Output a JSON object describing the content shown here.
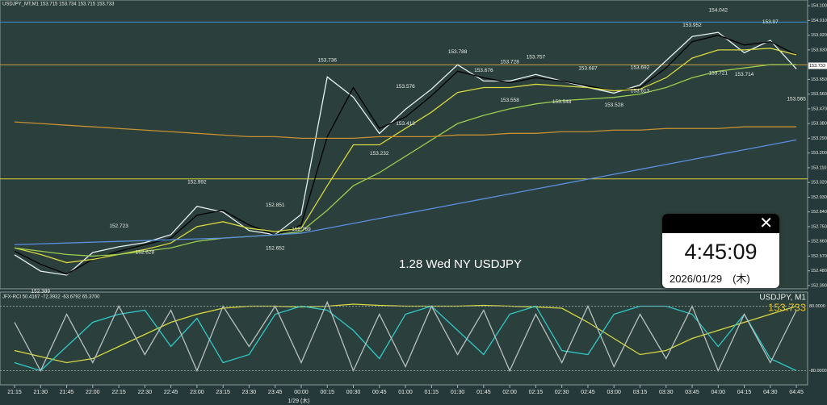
{
  "chart_data": [
    {
      "type": "line",
      "title": "USDJPY_MT,M1  153.715 153.734 153.715 153.733",
      "annotation_text": "1.28 Wed NY USDJPY",
      "x_label": "1/29 (木)",
      "categories": [
        "21:15",
        "21:30",
        "21:45",
        "22:00",
        "22:15",
        "22:30",
        "22:45",
        "23:00",
        "23:15",
        "23:30",
        "23:45",
        "00:00",
        "00:15",
        "00:30",
        "00:45",
        "01:00",
        "01:15",
        "01:30",
        "01:45",
        "02:00",
        "02:15",
        "02:30",
        "02:45",
        "03:00",
        "03:15",
        "03:30",
        "03:45",
        "04:00",
        "04:15",
        "04:30",
        "04:45"
      ],
      "series": [
        {
          "color": "#e6f0f0",
          "values": [
            152.578,
            152.478,
            152.454,
            152.592,
            152.627,
            152.652,
            152.701,
            152.874,
            152.839,
            152.726,
            152.701,
            152.825,
            153.665,
            153.541,
            153.319,
            153.467,
            153.591,
            153.739,
            153.64,
            153.64,
            153.68,
            153.64,
            153.601,
            153.566,
            153.616,
            153.764,
            153.912,
            153.937,
            153.813,
            153.888,
            153.714
          ]
        },
        {
          "color": "#000000",
          "values": [
            152.6,
            152.52,
            152.46,
            152.55,
            152.6,
            152.64,
            152.68,
            152.82,
            152.85,
            152.76,
            152.7,
            152.76,
            153.3,
            153.6,
            153.35,
            153.42,
            153.55,
            153.7,
            153.66,
            153.63,
            153.66,
            153.64,
            153.61,
            153.58,
            153.6,
            153.72,
            153.88,
            153.92,
            153.86,
            153.88,
            153.8
          ]
        },
        {
          "color": "#d8d840",
          "values": [
            152.62,
            152.58,
            152.53,
            152.55,
            152.58,
            152.61,
            152.65,
            152.75,
            152.78,
            152.74,
            152.72,
            152.74,
            153.0,
            153.25,
            153.25,
            153.35,
            153.45,
            153.57,
            153.6,
            153.6,
            153.62,
            153.61,
            153.6,
            153.58,
            153.59,
            153.66,
            153.78,
            153.83,
            153.83,
            153.84,
            153.8
          ]
        },
        {
          "color": "#9ccc50",
          "values": [
            152.62,
            152.6,
            152.58,
            152.57,
            152.58,
            152.6,
            152.62,
            152.66,
            152.68,
            152.69,
            152.7,
            152.72,
            152.85,
            153.0,
            153.08,
            153.18,
            153.28,
            153.38,
            153.43,
            153.47,
            153.5,
            153.52,
            153.53,
            153.54,
            153.56,
            153.6,
            153.66,
            153.7,
            153.72,
            153.74,
            153.74
          ]
        },
        {
          "color": "#c89030",
          "values": [
            153.39,
            153.38,
            153.37,
            153.36,
            153.35,
            153.34,
            153.33,
            153.32,
            153.31,
            153.3,
            153.3,
            153.29,
            153.29,
            153.29,
            153.3,
            153.3,
            153.3,
            153.31,
            153.31,
            153.32,
            153.32,
            153.33,
            153.33,
            153.34,
            153.34,
            153.35,
            153.35,
            153.35,
            153.36,
            153.36,
            153.36
          ]
        },
        {
          "color": "#5a8ee0",
          "values": [
            152.64,
            152.645,
            152.65,
            152.655,
            152.66,
            152.665,
            152.67,
            152.675,
            152.68,
            152.69,
            152.7,
            152.71,
            152.74,
            152.77,
            152.8,
            152.83,
            152.86,
            152.89,
            152.92,
            152.95,
            152.98,
            153.01,
            153.04,
            153.07,
            153.1,
            153.13,
            153.16,
            153.19,
            153.22,
            153.25,
            153.28
          ]
        }
      ],
      "hlines": [
        {
          "value": 154.0,
          "color": "#3a8fd9"
        },
        {
          "value": 153.739,
          "color": "#c8a040"
        },
        {
          "value": 153.042,
          "color": "#d8d040"
        }
      ],
      "annotations": [
        {
          "x": "21:30",
          "value": 152.389
        },
        {
          "x": "22:15",
          "value": 152.723
        },
        {
          "x": "22:30",
          "value": 152.628
        },
        {
          "x": "23:00",
          "value": 152.992
        },
        {
          "x": "23:45",
          "value": 152.851
        },
        {
          "x": "00:00",
          "value": 152.769
        },
        {
          "x": "23:45",
          "value": 152.652
        },
        {
          "x": "00:15",
          "value": 153.736
        },
        {
          "x": "01:00",
          "value": 153.576
        },
        {
          "x": "01:00",
          "value": 153.413
        },
        {
          "x": "00:45",
          "value": 153.232
        },
        {
          "x": "01:30",
          "value": 153.788
        },
        {
          "x": "02:00",
          "value": 153.728
        },
        {
          "x": "01:45",
          "value": 153.676
        },
        {
          "x": "02:00",
          "value": 153.558
        },
        {
          "x": "02:15",
          "value": 153.757
        },
        {
          "x": "02:45",
          "value": 153.687
        },
        {
          "x": "02:30",
          "value": 153.548
        },
        {
          "x": "03:00",
          "value": 153.528
        },
        {
          "x": "03:15",
          "value": 153.613
        },
        {
          "x": "03:15",
          "value": 153.692
        },
        {
          "x": "03:45",
          "value": 153.952
        },
        {
          "x": "04:00",
          "value": 154.042
        },
        {
          "x": "04:00",
          "value": 153.721
        },
        {
          "x": "04:30",
          "value": 153.97
        },
        {
          "x": "04:15",
          "value": 153.714
        },
        {
          "x": "04:45",
          "value": 153.565
        }
      ],
      "last_price": 153.733,
      "ylim": [
        152.37,
        154.135
      ],
      "yticks": [
        {
          "value": 154.1,
          "label": "154.100"
        },
        {
          "value": 154.01,
          "label": "154.010"
        },
        {
          "value": 153.92,
          "label": "153.920"
        },
        {
          "value": 153.83,
          "label": "153.830"
        },
        {
          "value": 153.65,
          "label": "153.650"
        },
        {
          "value": 153.56,
          "label": "153.560"
        },
        {
          "value": 153.47,
          "label": "153.470"
        },
        {
          "value": 153.38,
          "label": "153.380"
        },
        {
          "value": 153.29,
          "label": "153.290"
        },
        {
          "value": 153.2,
          "label": "153.200"
        },
        {
          "value": 153.11,
          "label": "153.110"
        },
        {
          "value": 153.02,
          "label": "153.020"
        },
        {
          "value": 152.93,
          "label": "152.930"
        },
        {
          "value": 152.84,
          "label": "152.840"
        },
        {
          "value": 152.75,
          "label": "152.750"
        },
        {
          "value": 152.66,
          "label": "152.660"
        },
        {
          "value": 152.57,
          "label": "152.570"
        },
        {
          "value": 152.48,
          "label": "152.480"
        },
        {
          "value": 152.39,
          "label": "152.390"
        }
      ]
    },
    {
      "type": "line",
      "title": "JFX-RCI 50.4167 -72.3932 -63.6792 65.3700",
      "symbol": "USDJPY, M1",
      "price": "153.733",
      "series": [
        {
          "color": "#d8d840",
          "values": [
            -30,
            -45,
            -60,
            -50,
            -20,
            10,
            40,
            60,
            75,
            80,
            80,
            78,
            80,
            85,
            82,
            80,
            80,
            80,
            82,
            80,
            78,
            75,
            40,
            0,
            -40,
            -30,
            0,
            20,
            40,
            60,
            80
          ]
        },
        {
          "color": "#30c8c8",
          "values": [
            -60,
            -80,
            -20,
            40,
            60,
            70,
            -20,
            50,
            -60,
            -40,
            60,
            80,
            70,
            20,
            -50,
            60,
            80,
            20,
            -40,
            60,
            80,
            -30,
            -40,
            60,
            80,
            80,
            60,
            -20,
            60,
            -50,
            -80
          ]
        },
        {
          "color": "#b8c0c0",
          "values": [
            40,
            -80,
            60,
            -60,
            80,
            -40,
            70,
            -80,
            80,
            -20,
            80,
            -60,
            90,
            -80,
            60,
            -70,
            80,
            -40,
            70,
            -80,
            60,
            -60,
            80,
            -70,
            60,
            -50,
            80,
            -80,
            60,
            -60,
            70
          ]
        }
      ],
      "ylim": [
        -115,
        115
      ],
      "yticks": [
        {
          "value": 80,
          "label": "80.0000"
        },
        {
          "value": -80,
          "label": "-80.0000"
        }
      ]
    }
  ],
  "clock": {
    "time": "4:45:09",
    "date": "2026/01/29　(木)"
  }
}
